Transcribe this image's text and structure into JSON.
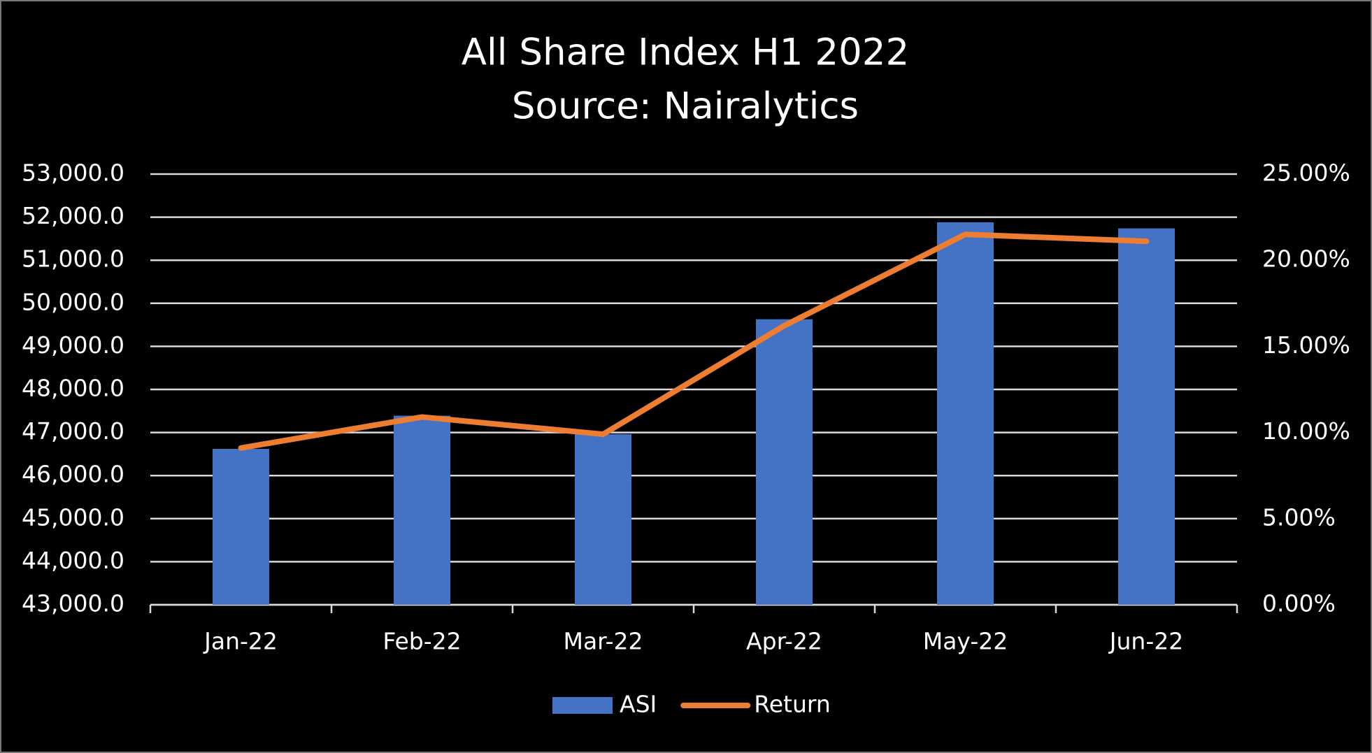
{
  "chart_data": {
    "type": "bar-line",
    "title": "All Share Index H1 2022",
    "subtitle": "Source: Nairalytics",
    "categories": [
      "Jan-22",
      "Feb-22",
      "Mar-22",
      "Apr-22",
      "May-22",
      "Jun-22"
    ],
    "series": [
      {
        "name": "ASI",
        "type": "bar",
        "color": "#4472c4",
        "values": [
          46620,
          47390,
          46960,
          49630,
          51880,
          51740
        ]
      },
      {
        "name": "Return",
        "type": "line",
        "axis": "y2",
        "color": "#ed7d31",
        "values": [
          9.1,
          10.9,
          9.9,
          16.2,
          21.5,
          21.1
        ]
      }
    ],
    "ylim": [
      43000,
      53000
    ],
    "yticks": [
      {
        "value": 43000,
        "label": "43,000.0"
      },
      {
        "value": 44000,
        "label": "44,000.0"
      },
      {
        "value": 45000,
        "label": "45,000.0"
      },
      {
        "value": 46000,
        "label": "46,000.0"
      },
      {
        "value": 47000,
        "label": "47,000.0"
      },
      {
        "value": 48000,
        "label": "48,000.0"
      },
      {
        "value": 49000,
        "label": "49,000.0"
      },
      {
        "value": 50000,
        "label": "50,000.0"
      },
      {
        "value": 51000,
        "label": "51,000.0"
      },
      {
        "value": 52000,
        "label": "52,000.0"
      },
      {
        "value": 53000,
        "label": "53,000.0"
      }
    ],
    "y2lim": [
      0,
      25
    ],
    "y2ticks": [
      {
        "value": 0,
        "label": "0.00%"
      },
      {
        "value": 5,
        "label": "5.00%"
      },
      {
        "value": 10,
        "label": "10.00%"
      },
      {
        "value": 15,
        "label": "15.00%"
      },
      {
        "value": 20,
        "label": "20.00%"
      },
      {
        "value": 25,
        "label": "25.00%"
      }
    ],
    "grid": true,
    "legend": "bottom"
  }
}
